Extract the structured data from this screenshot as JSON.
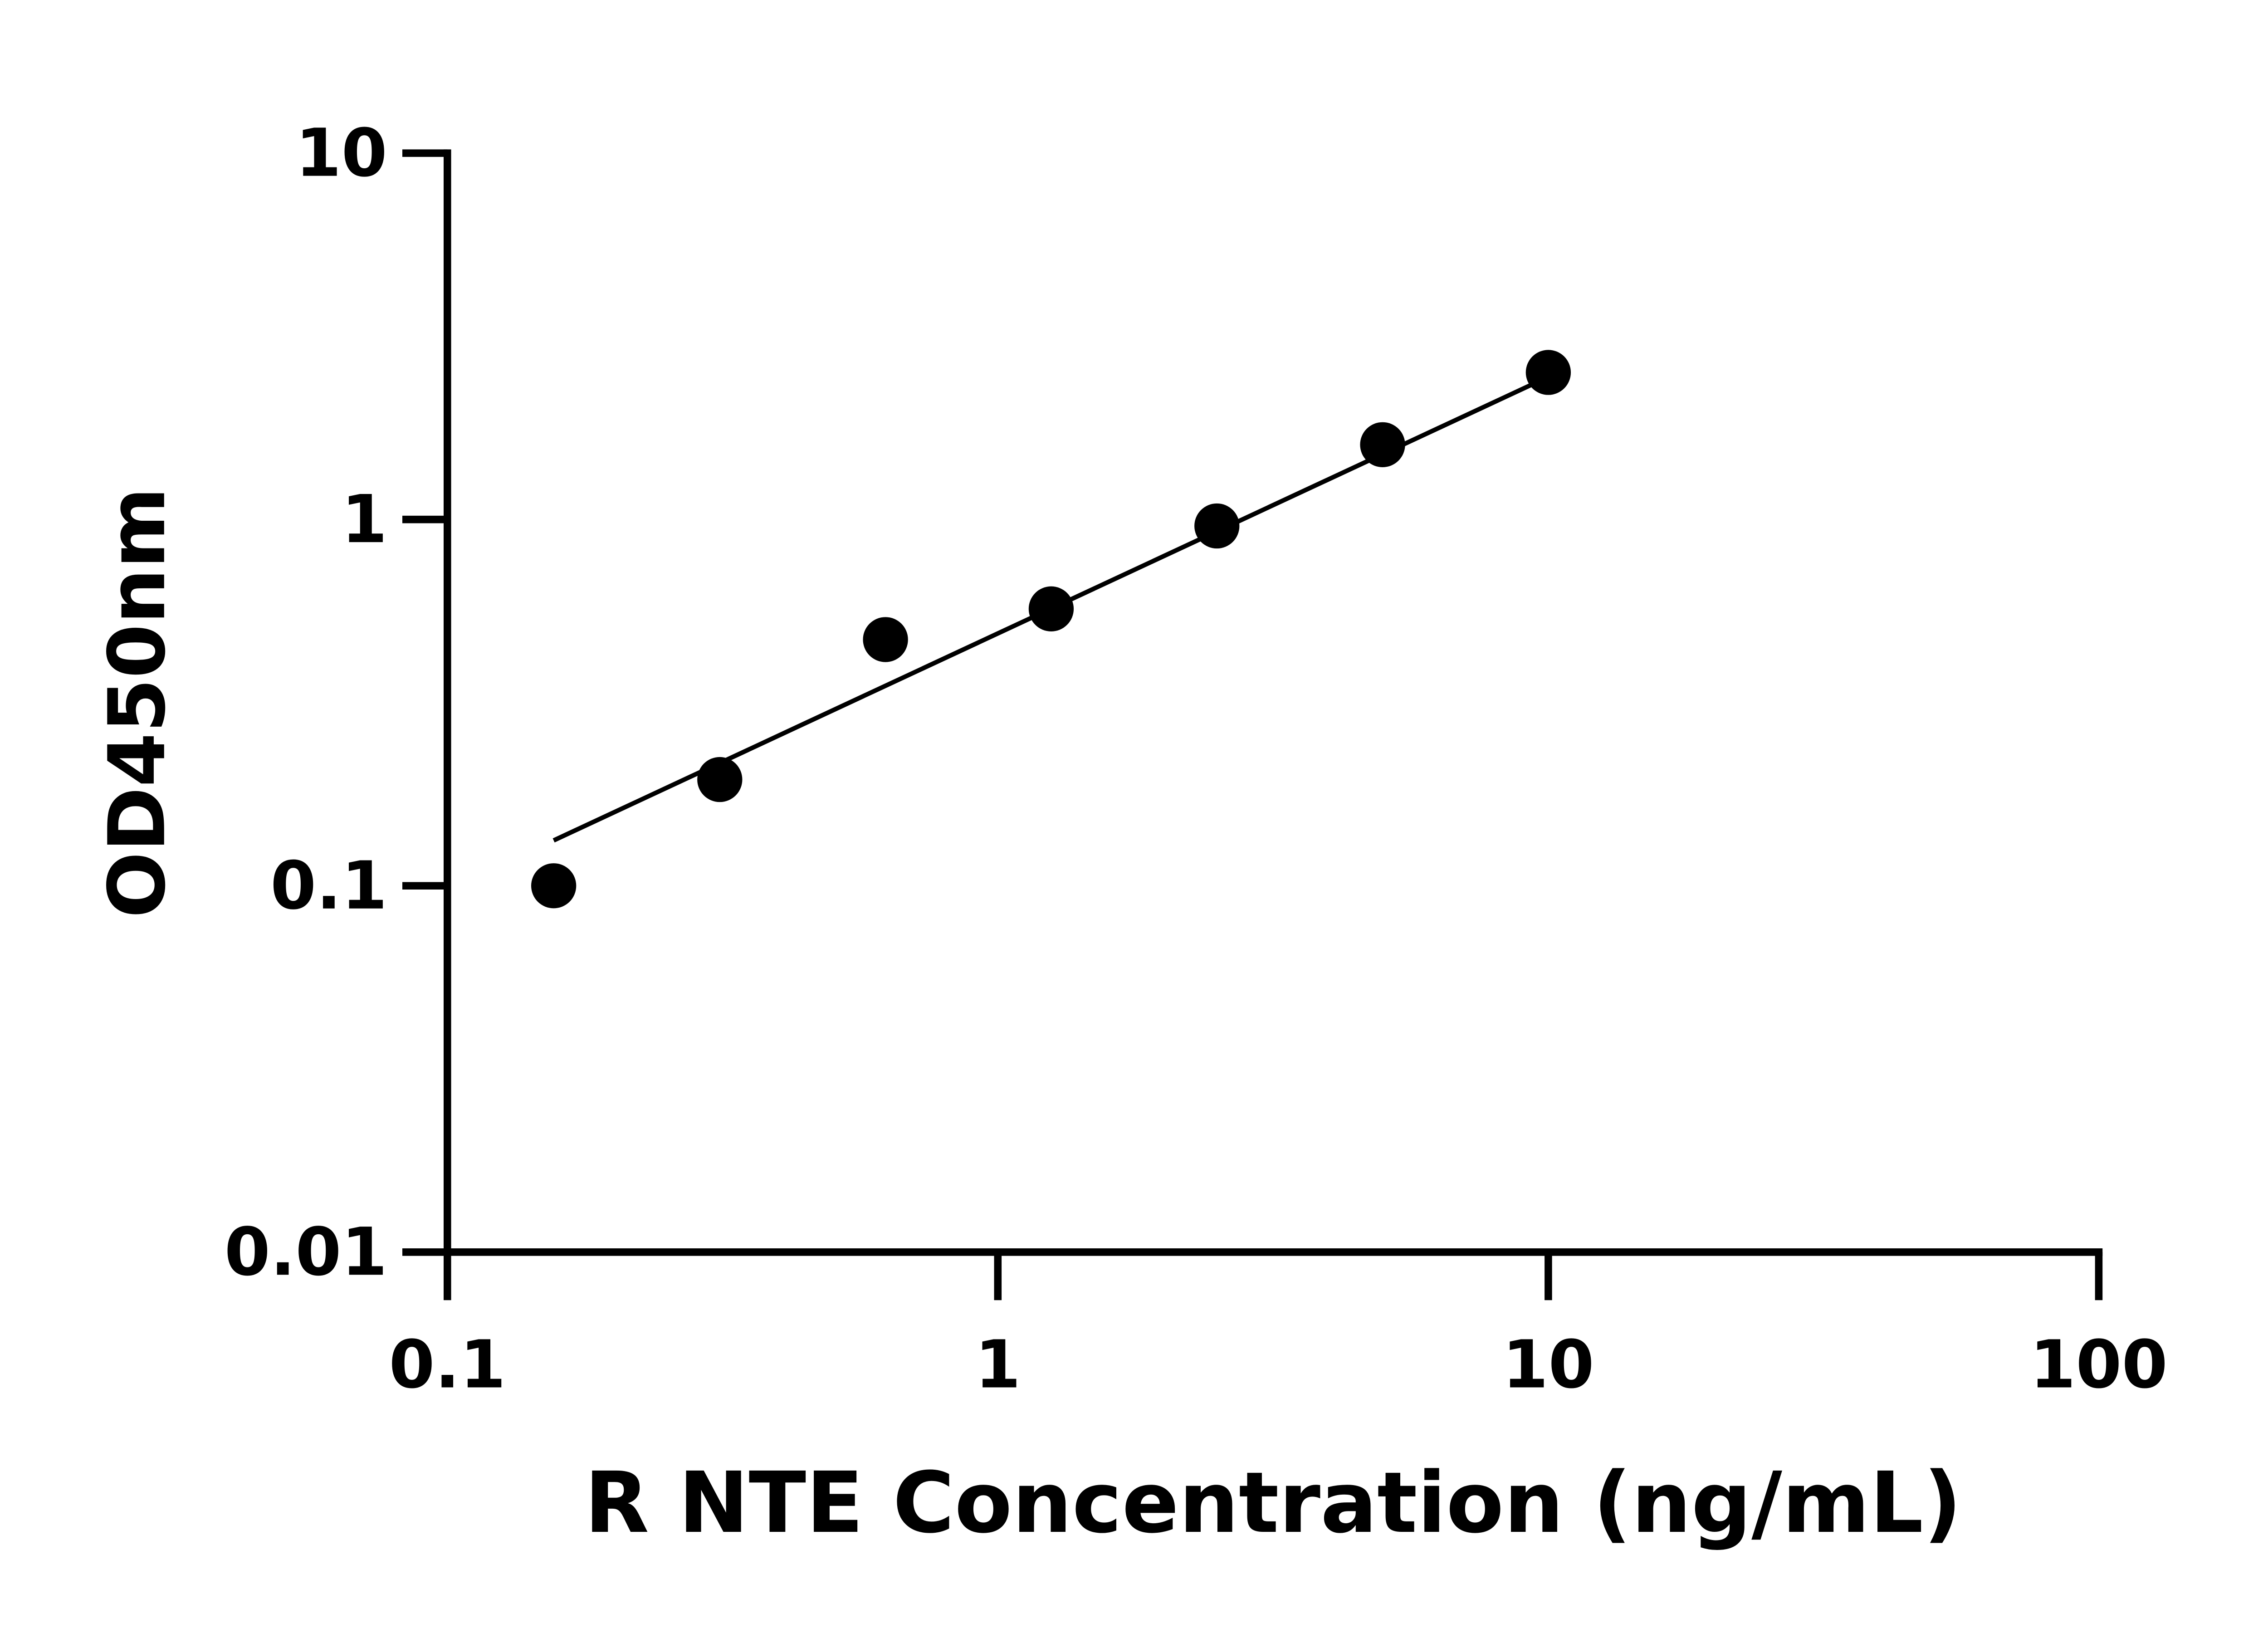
{
  "chart_data": {
    "type": "scatter",
    "x_label": "R NTE Concentration (ng/mL)",
    "y_label": "OD450nm",
    "x": [
      0.156,
      0.3125,
      0.625,
      1.25,
      2.5,
      5,
      10
    ],
    "values": [
      0.1,
      0.195,
      0.47,
      0.57,
      0.96,
      1.6,
      2.52
    ],
    "color": "#000000",
    "fit": {
      "x": [
        0.156,
        10
      ],
      "values": [
        0.133,
        2.45
      ]
    },
    "xlim": [
      0.1,
      100
    ],
    "ylim": [
      0.01,
      10
    ],
    "xticks": [
      0.1,
      1,
      10,
      100
    ],
    "yticks": [
      0.01,
      0.1,
      1,
      10
    ],
    "xscale": "log",
    "yscale": "log",
    "grid": false
  }
}
